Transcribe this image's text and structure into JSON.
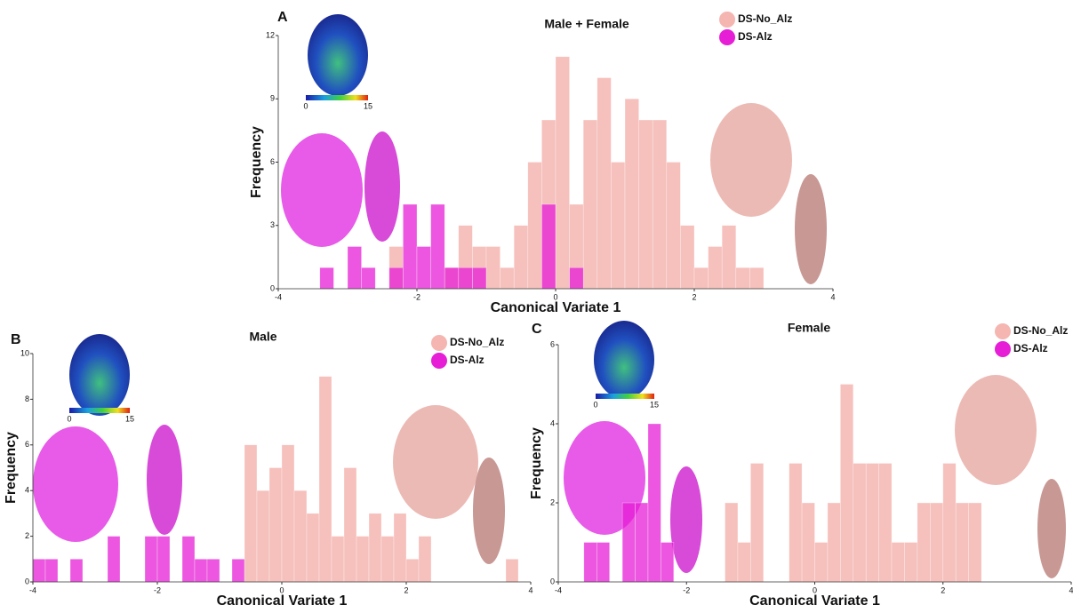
{
  "chart_data": [
    {
      "type": "histogram",
      "label": "A",
      "title": "Male + Female",
      "xlabel": "Canonical Variate 1",
      "ylabel": "Frequency",
      "xlim": [
        -4,
        4
      ],
      "xticks": [
        -4,
        -2,
        0,
        2,
        4
      ],
      "ylim": [
        0,
        12
      ],
      "yticks": [
        0,
        3,
        6,
        9,
        12
      ],
      "bins": [
        -3.6,
        -3.4,
        -3.2,
        -3.0,
        -2.8,
        -2.6,
        -2.4,
        -2.2,
        -2.0,
        -1.8,
        -1.6,
        -1.4,
        -1.2,
        -1.0,
        -0.8,
        -0.6,
        -0.4,
        -0.2,
        0,
        0.2,
        0.4,
        0.6,
        0.8,
        1.0,
        1.2,
        1.4,
        1.6,
        1.8,
        2.0,
        2.2,
        2.4,
        2.6,
        2.8,
        3.0
      ],
      "series": [
        {
          "name": "DS-No_Alz",
          "color": "#f5b5b0",
          "values": [
            0,
            0,
            0,
            0,
            0,
            0,
            2,
            0,
            0,
            0,
            1,
            3,
            2,
            2,
            1,
            3,
            6,
            8,
            11,
            4,
            8,
            10,
            6,
            9,
            8,
            8,
            6,
            3,
            1,
            2,
            3,
            1,
            1
          ]
        },
        {
          "name": "DS-Alz",
          "color": "#e61ed6",
          "values": [
            0,
            1,
            0,
            2,
            1,
            0,
            1,
            4,
            2,
            4,
            1,
            1,
            1,
            0,
            0,
            0,
            0,
            4,
            0,
            1,
            0,
            0,
            0,
            0,
            0,
            0,
            0,
            0,
            0,
            0,
            0,
            0,
            0
          ]
        }
      ],
      "colorbar_ticks": [
        0,
        15
      ]
    },
    {
      "type": "histogram",
      "label": "B",
      "title": "Male",
      "xlabel": "Canonical Variate 1",
      "ylabel": "Frequency",
      "xlim": [
        -4,
        4
      ],
      "xticks": [
        -4,
        -2,
        0,
        2,
        4
      ],
      "ylim": [
        0,
        10
      ],
      "yticks": [
        0,
        2,
        4,
        6,
        8,
        10
      ],
      "bins": [
        -4.0,
        -3.8,
        -3.6,
        -3.4,
        -3.2,
        -3.0,
        -2.8,
        -2.6,
        -2.4,
        -2.2,
        -2.0,
        -1.8,
        -1.6,
        -1.4,
        -1.2,
        -1.0,
        -0.8,
        -0.6,
        -0.4,
        -0.2,
        0,
        0.2,
        0.4,
        0.6,
        0.8,
        1.0,
        1.2,
        1.4,
        1.6,
        1.8,
        2.0,
        2.2,
        2.4,
        2.6,
        2.8,
        3.0,
        3.2,
        3.4,
        3.6,
        3.8,
        4.0
      ],
      "series": [
        {
          "name": "DS-No_Alz",
          "color": "#f5b5b0",
          "values": [
            0,
            0,
            0,
            0,
            0,
            0,
            0,
            0,
            0,
            0,
            0,
            0,
            0,
            0,
            0,
            0,
            0,
            6,
            4,
            5,
            6,
            4,
            3,
            9,
            2,
            5,
            2,
            3,
            2,
            3,
            1,
            2,
            0,
            0,
            0,
            0,
            0,
            0,
            1,
            0
          ]
        },
        {
          "name": "DS-Alz",
          "color": "#e61ed6",
          "values": [
            1,
            1,
            0,
            1,
            0,
            0,
            2,
            0,
            0,
            2,
            2,
            0,
            2,
            1,
            1,
            0,
            1,
            0,
            0,
            0,
            0,
            0,
            0,
            0,
            0,
            0,
            0,
            0,
            0,
            0,
            0,
            0,
            0,
            0,
            0,
            0,
            0,
            0,
            0,
            0
          ]
        }
      ],
      "colorbar_ticks": [
        0,
        15
      ]
    },
    {
      "type": "histogram",
      "label": "C",
      "title": "Female",
      "xlabel": "Canonical Variate 1",
      "ylabel": "Frequency",
      "xlim": [
        -4,
        4
      ],
      "xticks": [
        -4,
        -2,
        0,
        2,
        4
      ],
      "ylim": [
        0,
        6
      ],
      "yticks": [
        0,
        2,
        4,
        6
      ],
      "bins": [
        -3.6,
        -3.4,
        -3.2,
        -3.0,
        -2.8,
        -2.6,
        -2.4,
        -2.2,
        -2.0,
        -1.8,
        -1.6,
        -1.4,
        -1.2,
        -1.0,
        -0.8,
        -0.6,
        -0.4,
        -0.2,
        0,
        0.2,
        0.4,
        0.6,
        0.8,
        1.0,
        1.2,
        1.4,
        1.6,
        1.8,
        2.0,
        2.2,
        2.4,
        2.6
      ],
      "series": [
        {
          "name": "DS-No_Alz",
          "color": "#f5b5b0",
          "values": [
            0,
            0,
            0,
            0,
            0,
            0,
            0,
            0,
            0,
            0,
            0,
            2,
            1,
            3,
            0,
            0,
            3,
            2,
            1,
            2,
            5,
            3,
            3,
            3,
            1,
            1,
            2,
            2,
            3,
            2,
            2
          ]
        },
        {
          "name": "DS-Alz",
          "color": "#e61ed6",
          "values": [
            1,
            1,
            0,
            2,
            2,
            4,
            1,
            0,
            0,
            0,
            0,
            0,
            0,
            0,
            0,
            0,
            0,
            0,
            0,
            0,
            0,
            0,
            0,
            0,
            0,
            0,
            0,
            0,
            0,
            0,
            0
          ]
        }
      ],
      "colorbar_ticks": [
        0,
        15
      ]
    }
  ]
}
